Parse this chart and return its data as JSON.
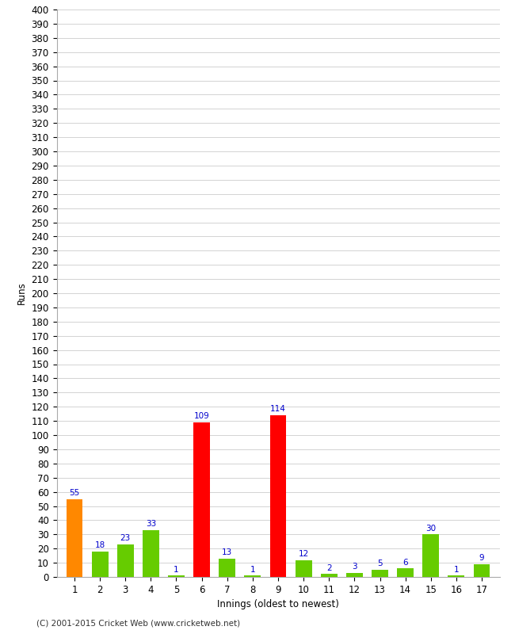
{
  "xlabel": "Innings (oldest to newest)",
  "ylabel": "Runs",
  "categories": [
    "1",
    "2",
    "3",
    "4",
    "5",
    "6",
    "7",
    "8",
    "9",
    "10",
    "11",
    "12",
    "13",
    "14",
    "15",
    "16",
    "17"
  ],
  "values": [
    55,
    18,
    23,
    33,
    1,
    109,
    13,
    1,
    114,
    12,
    2,
    3,
    5,
    6,
    30,
    1,
    9
  ],
  "colors": [
    "#ff8800",
    "#66cc00",
    "#66cc00",
    "#66cc00",
    "#66cc00",
    "#ff0000",
    "#66cc00",
    "#66cc00",
    "#ff0000",
    "#66cc00",
    "#66cc00",
    "#66cc00",
    "#66cc00",
    "#66cc00",
    "#66cc00",
    "#66cc00",
    "#66cc00"
  ],
  "ylim": [
    0,
    400
  ],
  "yticks": [
    0,
    10,
    20,
    30,
    40,
    50,
    60,
    70,
    80,
    90,
    100,
    110,
    120,
    130,
    140,
    150,
    160,
    170,
    180,
    190,
    200,
    210,
    220,
    230,
    240,
    250,
    260,
    270,
    280,
    290,
    300,
    310,
    320,
    330,
    340,
    350,
    360,
    370,
    380,
    390,
    400
  ],
  "label_color": "#0000cc",
  "background_color": "#ffffff",
  "grid_color": "#cccccc",
  "footer": "(C) 2001-2015 Cricket Web (www.cricketweb.net)",
  "bar_width": 0.65
}
